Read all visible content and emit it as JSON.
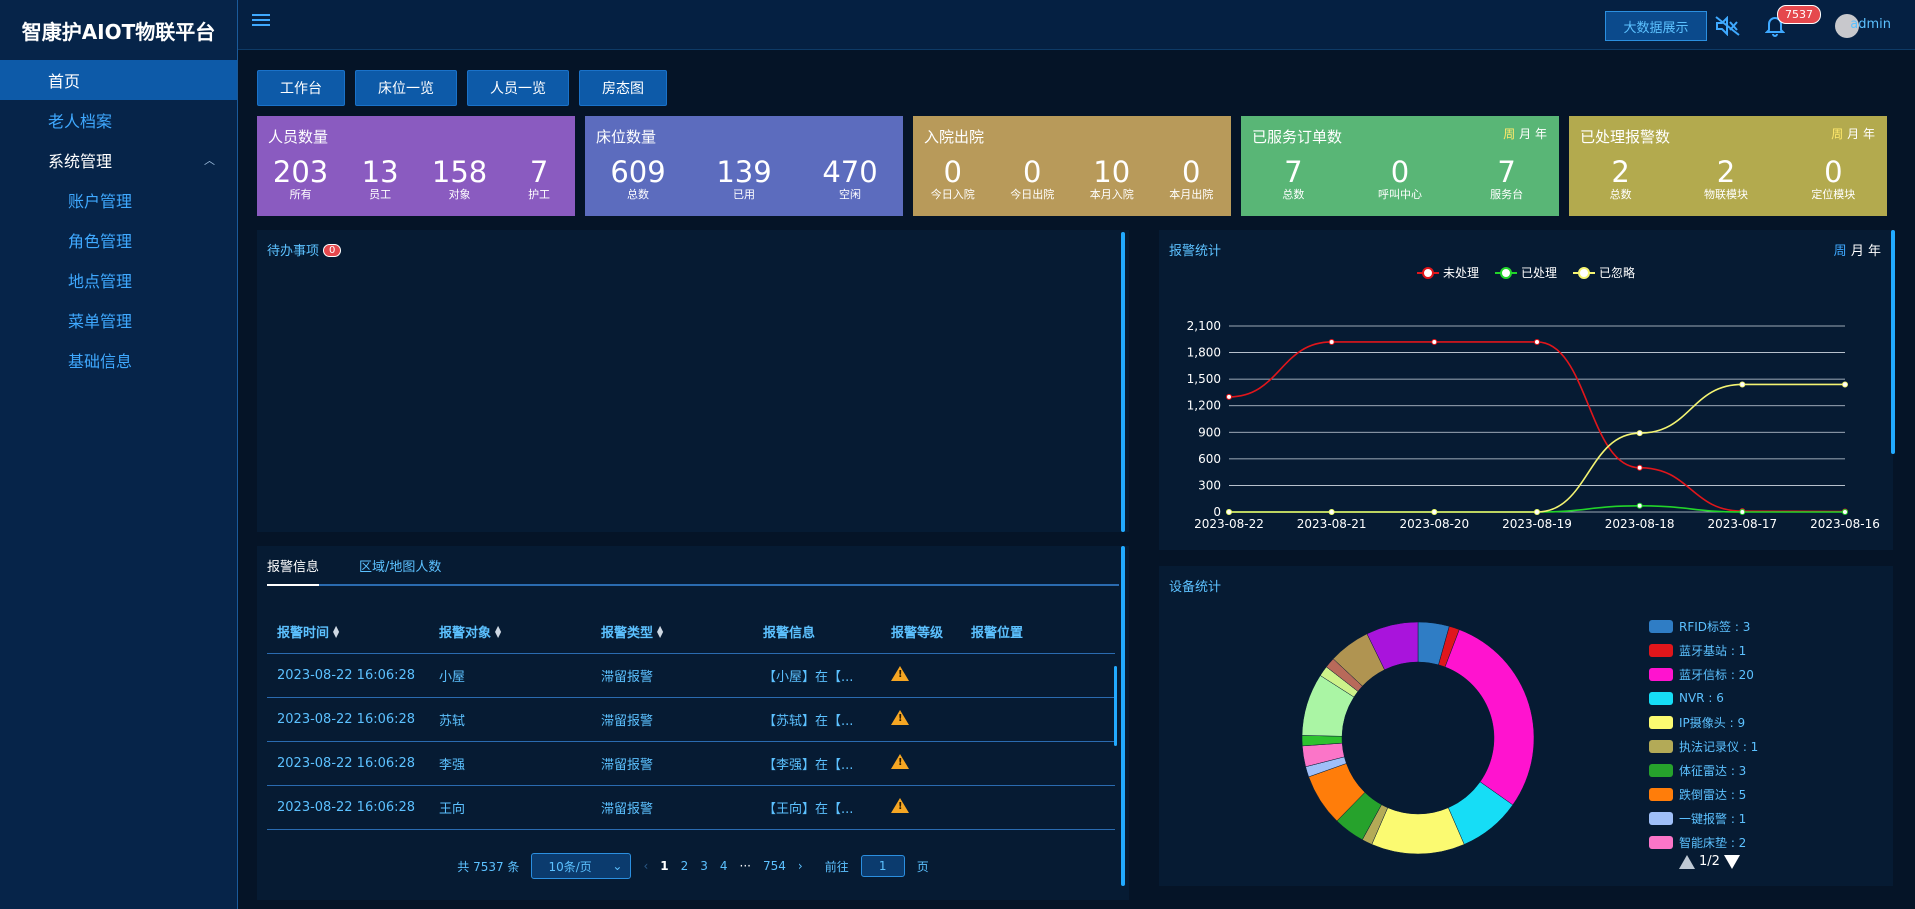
{
  "brand": "智康护AIOT物联平台",
  "sidebar": {
    "items": [
      {
        "label": "首页"
      },
      {
        "label": "老人档案"
      },
      {
        "label": "系统管理"
      },
      {
        "label": "账户管理"
      },
      {
        "label": "角色管理"
      },
      {
        "label": "地点管理"
      },
      {
        "label": "菜单管理"
      },
      {
        "label": "基础信息"
      }
    ]
  },
  "header": {
    "bigdata_label": "大数据展示",
    "notification_count": "7537",
    "user": "admin"
  },
  "quick_buttons": [
    "工作台",
    "床位一览",
    "人员一览",
    "房态图"
  ],
  "cards": [
    {
      "title": "人员数量",
      "color": "#8a5bc0",
      "stats": [
        {
          "v": "203",
          "l": "所有"
        },
        {
          "v": "13",
          "l": "员工"
        },
        {
          "v": "158",
          "l": "对象"
        },
        {
          "v": "7",
          "l": "护工"
        }
      ]
    },
    {
      "title": "床位数量",
      "color": "#5c6cbe",
      "stats": [
        {
          "v": "609",
          "l": "总数"
        },
        {
          "v": "139",
          "l": "已用"
        },
        {
          "v": "470",
          "l": "空闲"
        }
      ]
    },
    {
      "title": "入院出院",
      "color": "#b89a5a",
      "stats": [
        {
          "v": "0",
          "l": "今日入院"
        },
        {
          "v": "0",
          "l": "今日出院"
        },
        {
          "v": "10",
          "l": "本月入院"
        },
        {
          "v": "0",
          "l": "本月出院"
        }
      ]
    },
    {
      "title": "已服务订单数",
      "color": "#59b676",
      "period": [
        "周",
        "月",
        "年"
      ],
      "stats": [
        {
          "v": "7",
          "l": "总数"
        },
        {
          "v": "0",
          "l": "呼叫中心"
        },
        {
          "v": "7",
          "l": "服务台"
        }
      ]
    },
    {
      "title": "已处理报警数",
      "color": "#b3aa4e",
      "period": [
        "周",
        "月",
        "年"
      ],
      "stats": [
        {
          "v": "2",
          "l": "总数"
        },
        {
          "v": "2",
          "l": "物联模块"
        },
        {
          "v": "0",
          "l": "定位模块"
        }
      ]
    }
  ],
  "todo": {
    "title": "待办事项",
    "count": "0"
  },
  "alarm": {
    "tabs": [
      "报警信息",
      "区域/地图人数"
    ],
    "columns": [
      "报警时间",
      "报警对象",
      "报警类型",
      "报警信息",
      "报警等级",
      "报警位置"
    ],
    "rows": [
      {
        "time": "2023-08-22 16:06:28",
        "target": "小屋",
        "type": "滞留报警",
        "info": "【小屋】在【..."
      },
      {
        "time": "2023-08-22 16:06:28",
        "target": "苏轼",
        "type": "滞留报警",
        "info": "【苏轼】在【..."
      },
      {
        "time": "2023-08-22 16:06:28",
        "target": "李强",
        "type": "滞留报警",
        "info": "【李强】在【..."
      },
      {
        "time": "2023-08-22 16:06:28",
        "target": "王向",
        "type": "滞留报警",
        "info": "【王向】在【..."
      }
    ],
    "pager": {
      "total": "共 7537 条",
      "size": "10条/页",
      "pages": [
        "1",
        "2",
        "3",
        "4",
        "···",
        "754"
      ],
      "goto_prefix": "前往",
      "goto_value": "1",
      "goto_suffix": "页"
    }
  },
  "alarm_stats": {
    "title": "报警统计",
    "period": [
      "周",
      "月",
      "年"
    ]
  },
  "device_stats": {
    "title": "设备统计",
    "legend": [
      {
        "label": "RFID标签 : 3",
        "color": "#2f7dc5"
      },
      {
        "label": "蓝牙基站 : 1",
        "color": "#e0161b"
      },
      {
        "label": "蓝牙信标 : 20",
        "color": "#ff13cf"
      },
      {
        "label": "NVR : 6",
        "color": "#16ddf6"
      },
      {
        "label": "IP摄像头 : 9",
        "color": "#fbfa71"
      },
      {
        "label": "执法记录仪 : 1",
        "color": "#b3aa57"
      },
      {
        "label": "体征雷达 : 3",
        "color": "#26a22c"
      },
      {
        "label": "跌倒雷达 : 5",
        "color": "#ff7d0a"
      },
      {
        "label": "一键报警 : 1",
        "color": "#9fbff8"
      },
      {
        "label": "智能床垫 : 2",
        "color": "#fb75c8"
      }
    ],
    "page": "1/2"
  },
  "chart_data": [
    {
      "type": "line",
      "title": "报警统计",
      "x": [
        "2023-08-22",
        "2023-08-21",
        "2023-08-20",
        "2023-08-19",
        "2023-08-18",
        "2023-08-17",
        "2023-08-16"
      ],
      "ylim": [
        0,
        2100
      ],
      "yticks": [
        "0",
        "300",
        "600",
        "900",
        "1,200",
        "1,500",
        "1,800",
        "2,100"
      ],
      "series": [
        {
          "name": "未处理",
          "color": "#e0161b",
          "values": [
            1300,
            1920,
            1920,
            1920,
            500,
            10,
            5
          ]
        },
        {
          "name": "已处理",
          "color": "#22d42a",
          "values": [
            0,
            0,
            0,
            0,
            70,
            0,
            0
          ]
        },
        {
          "name": "已忽略",
          "color": "#f4f472",
          "values": [
            0,
            0,
            0,
            0,
            890,
            1440,
            1440
          ]
        }
      ],
      "grid": true,
      "legend": "top-center"
    },
    {
      "type": "pie",
      "title": "设备统计",
      "slices": [
        {
          "label": "RFID标签",
          "value": 3,
          "color": "#2f7dc5"
        },
        {
          "label": "蓝牙基站",
          "value": 1,
          "color": "#e0161b"
        },
        {
          "label": "蓝牙信标",
          "value": 20,
          "color": "#ff13cf"
        },
        {
          "label": "NVR",
          "value": 6,
          "color": "#16ddf6"
        },
        {
          "label": "IP摄像头",
          "value": 9,
          "color": "#fbfa71"
        },
        {
          "label": "执法记录仪",
          "value": 1,
          "color": "#b3aa57"
        },
        {
          "label": "体征雷达",
          "value": 3,
          "color": "#26a22c"
        },
        {
          "label": "跌倒雷达",
          "value": 5,
          "color": "#ff7d0a"
        },
        {
          "label": "一键报警",
          "value": 1,
          "color": "#9fbff8"
        },
        {
          "label": "智能床垫",
          "value": 2,
          "color": "#fb75c8"
        },
        {
          "value": 1,
          "color": "#2ec22e"
        },
        {
          "value": 6,
          "color": "#aaf5a4"
        },
        {
          "value": 1,
          "color": "#cdf28a"
        },
        {
          "value": 1,
          "color": "#b86a5a"
        },
        {
          "value": 4,
          "color": "#b09451"
        },
        {
          "value": 5,
          "color": "#a914dc"
        }
      ],
      "legend": "right"
    }
  ]
}
